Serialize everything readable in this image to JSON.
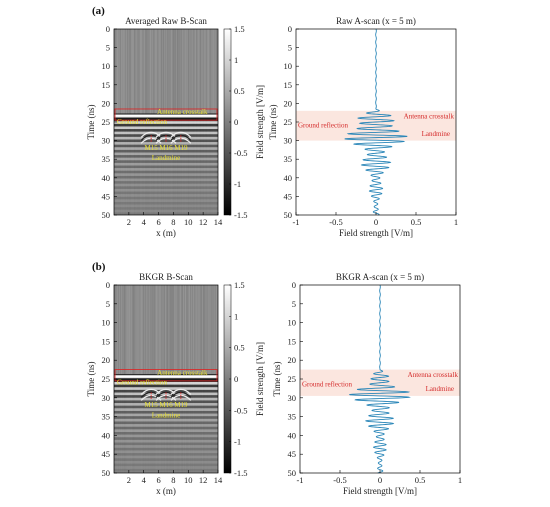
{
  "panel_labels": [
    "(a)",
    "(b)"
  ],
  "chart_data": [
    {
      "type": "heatmap",
      "title": "Averaged Raw B-Scan",
      "xlabel": "x (m)",
      "ylabel": "Time (ns)",
      "xlim": [
        0,
        14
      ],
      "ylim": [
        50,
        0
      ],
      "xticks": [
        2,
        4,
        6,
        8,
        10,
        12,
        14
      ],
      "yticks": [
        0,
        5,
        10,
        15,
        20,
        25,
        30,
        35,
        40,
        45,
        50
      ],
      "colorbar": {
        "label": "Field strength [V/m]",
        "ticks": [
          1.5,
          1,
          0.5,
          0,
          -0.5,
          -1,
          -1.5
        ],
        "range": [
          -1.5,
          1.5
        ],
        "colormap": "gray"
      },
      "box_range_ns": [
        21.5,
        24.5
      ],
      "annotations": [
        "Antenna crosstalk",
        "Ground reflection",
        "M15",
        "M16",
        "M19",
        "Landmine"
      ],
      "targets_x_m": [
        5,
        7,
        9
      ]
    },
    {
      "type": "line",
      "title": "Raw A-scan (x = 5 m)",
      "xlabel": "Field strength [V/m]",
      "ylabel": "Time (ns)",
      "xlim": [
        -1,
        1
      ],
      "ylim": [
        50,
        0
      ],
      "xticks": [
        -1,
        -0.5,
        0,
        0.5,
        1
      ],
      "yticks": [
        0,
        5,
        10,
        15,
        20,
        25,
        30,
        35,
        40,
        45,
        50
      ],
      "shaded_range_ns": [
        22,
        30
      ],
      "annotations": [
        "Antenna crosstalk",
        "Ground reflection",
        "Landmine"
      ],
      "series_color": "#2a86b8",
      "trace": {
        "baseline": 0,
        "onset_ns": 21.5,
        "decay_end_ns": 50,
        "peak_amplitude": 0.55,
        "peak_time_ns": 26.5,
        "period_ns": 1.4
      }
    },
    {
      "type": "heatmap",
      "title": "BKGR B-Scan",
      "xlabel": "x (m)",
      "ylabel": "Time (ns)",
      "xlim": [
        0,
        14
      ],
      "ylim": [
        50,
        0
      ],
      "xticks": [
        2,
        4,
        6,
        8,
        10,
        12,
        14
      ],
      "yticks": [
        0,
        5,
        10,
        15,
        20,
        25,
        30,
        35,
        40,
        45,
        50
      ],
      "colorbar": {
        "label": "Field strength [V/m]",
        "ticks": [
          1.5,
          1,
          0.5,
          0,
          -0.5,
          -1,
          -1.5
        ],
        "range": [
          -1.5,
          1.5
        ],
        "colormap": "gray"
      },
      "box_range_ns": [
        22.5,
        25.5
      ],
      "annotations": [
        "Antenna crosstalk",
        "Ground reflection",
        "M15",
        "M16",
        "M19",
        "Landmine"
      ],
      "targets_x_m": [
        5,
        7,
        9
      ]
    },
    {
      "type": "line",
      "title": "BKGR A-scan (x = 5 m)",
      "xlabel": "Field strength [V/m]",
      "ylabel": "Time (ns)",
      "xlim": [
        -1,
        1
      ],
      "ylim": [
        50,
        0
      ],
      "xticks": [
        -1,
        -0.5,
        0,
        0.5,
        1
      ],
      "yticks": [
        0,
        5,
        10,
        15,
        20,
        25,
        30,
        35,
        40,
        45,
        50
      ],
      "shaded_range_ns": [
        22.5,
        29.5
      ],
      "annotations": [
        "Antenna crosstalk",
        "Ground reflection",
        "Landmine"
      ],
      "series_color": "#2a86b8",
      "trace": {
        "baseline": 0,
        "onset_ns": 22.5,
        "decay_end_ns": 50,
        "peak_amplitude": 0.45,
        "peak_time_ns": 28,
        "period_ns": 1.4
      }
    }
  ]
}
